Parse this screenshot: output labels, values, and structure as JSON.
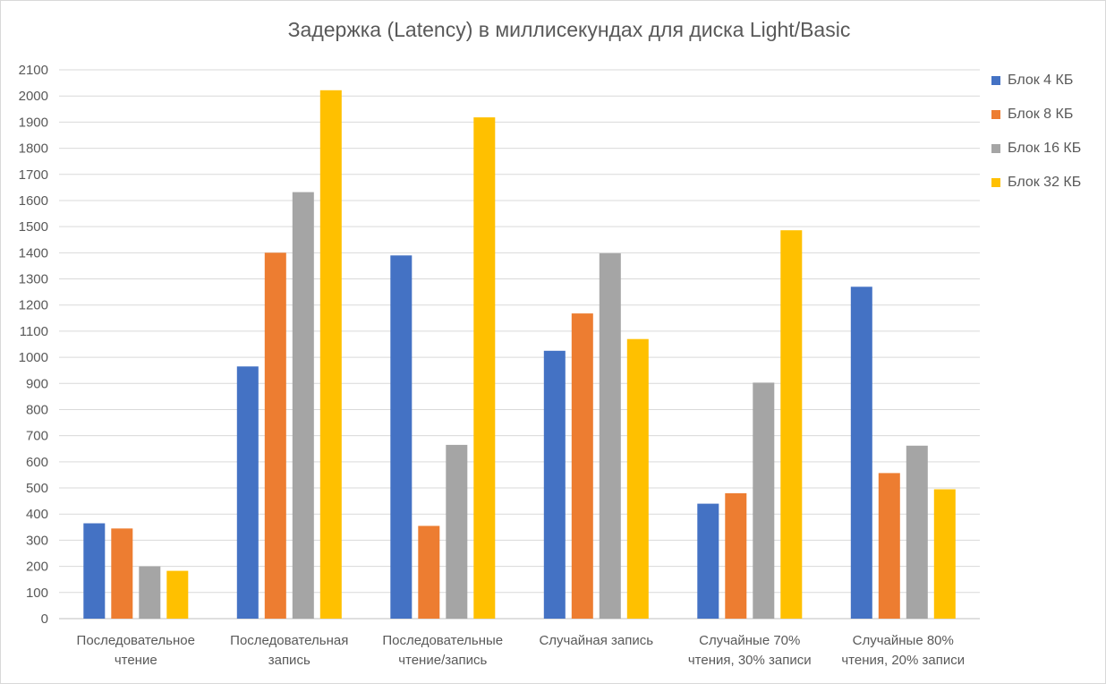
{
  "chart_data": {
    "type": "bar",
    "title": "Задержка (Latency) в миллисекундах для диска Light/Basic",
    "xlabel": "",
    "ylabel": "",
    "ylim": [
      0,
      2100
    ],
    "ytick_step": 100,
    "grid": true,
    "legend_position": "right",
    "categories": [
      [
        "Последовательное",
        "чтение"
      ],
      [
        "Последовательная",
        "запись"
      ],
      [
        "Последовательные",
        "чтение/запись"
      ],
      [
        "Случайная запись"
      ],
      [
        "Случайные 70%",
        "чтения, 30% записи"
      ],
      [
        "Случайные 80%",
        "чтения, 20% записи"
      ]
    ],
    "series": [
      {
        "name": "Блок 4 КБ",
        "color": "#4472c4",
        "values": [
          365,
          965,
          1390,
          1025,
          440,
          1270
        ]
      },
      {
        "name": "Блок 8 КБ",
        "color": "#ed7d31",
        "values": [
          345,
          1400,
          355,
          1168,
          480,
          557
        ]
      },
      {
        "name": "Блок 16 КБ",
        "color": "#a5a5a5",
        "values": [
          200,
          1632,
          665,
          1398,
          903,
          662
        ]
      },
      {
        "name": "Блок 32 КБ",
        "color": "#ffc000",
        "values": [
          183,
          2022,
          1918,
          1070,
          1486,
          495
        ]
      }
    ]
  }
}
